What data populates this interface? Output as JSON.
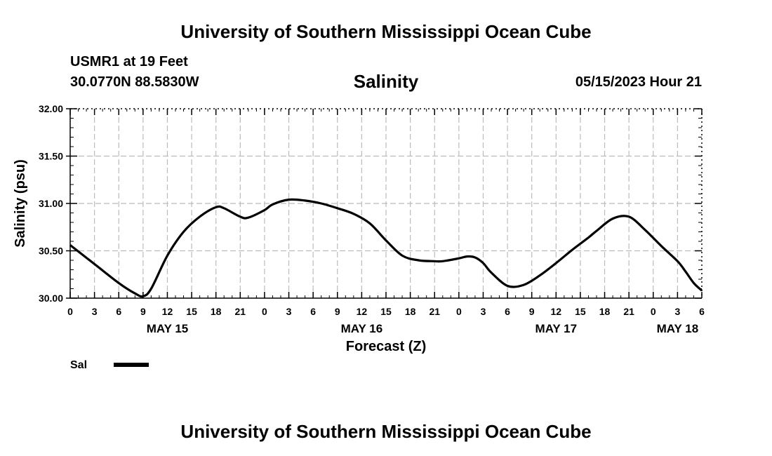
{
  "header": {
    "title": "University of Southern Mississippi Ocean Cube",
    "station": "USMR1 at 19 Feet",
    "coords": "30.0770N  88.5830W",
    "chart_title": "Salinity",
    "datetime": "05/15/2023 Hour 21"
  },
  "footer": {
    "title": "University of Southern Mississippi Ocean Cube"
  },
  "colors": {
    "line": "#000000",
    "grid": "#bbbbbb",
    "axis": "#000000"
  },
  "chart_data": {
    "type": "line",
    "title": "Salinity",
    "xlabel": "Forecast (Z)",
    "ylabel": "Salinity (psu)",
    "xlim": [
      0,
      78
    ],
    "ylim": [
      30.0,
      32.0
    ],
    "y_ticks": [
      30.0,
      30.5,
      31.0,
      31.5,
      32.0
    ],
    "y_tick_labels": [
      "30.00",
      "30.50",
      "31.00",
      "31.50",
      "32.00"
    ],
    "x_ticks": [
      0,
      3,
      6,
      9,
      12,
      15,
      18,
      21,
      24,
      27,
      30,
      33,
      36,
      39,
      42,
      45,
      48,
      51,
      54,
      57,
      60,
      63,
      66,
      69,
      72,
      75,
      78
    ],
    "x_tick_labels": [
      "0",
      "3",
      "6",
      "9",
      "12",
      "15",
      "18",
      "21",
      "0",
      "3",
      "6",
      "9",
      "12",
      "15",
      "18",
      "21",
      "0",
      "3",
      "6",
      "9",
      "12",
      "15",
      "18",
      "21",
      "0",
      "3",
      "6"
    ],
    "day_labels": [
      {
        "x": 12,
        "text": "MAY 15"
      },
      {
        "x": 36,
        "text": "MAY 16"
      },
      {
        "x": 60,
        "text": "MAY 17"
      },
      {
        "x": 75,
        "text": "MAY 18"
      }
    ],
    "grid": true,
    "legend": {
      "position": "bottom-left",
      "entries": [
        "Sal"
      ]
    },
    "series": [
      {
        "name": "Sal",
        "x": [
          0,
          3,
          6,
          8,
          9,
          10,
          12,
          14,
          16,
          18,
          19,
          21,
          22,
          24,
          25,
          27,
          29,
          31,
          33,
          35,
          37,
          39,
          41,
          43,
          45,
          46,
          48,
          49,
          50,
          51,
          52,
          54,
          56,
          58,
          60,
          62,
          64,
          65,
          67,
          69,
          71,
          73,
          75,
          76,
          77,
          78
        ],
        "values": [
          30.56,
          30.36,
          30.16,
          30.05,
          30.02,
          30.1,
          30.45,
          30.7,
          30.86,
          30.96,
          30.95,
          30.86,
          30.85,
          30.93,
          30.99,
          31.04,
          31.03,
          31.0,
          30.95,
          30.89,
          30.79,
          30.61,
          30.45,
          30.4,
          30.39,
          30.39,
          30.42,
          30.44,
          30.43,
          30.37,
          30.27,
          30.13,
          30.14,
          30.24,
          30.37,
          30.51,
          30.64,
          30.71,
          30.84,
          30.86,
          30.72,
          30.55,
          30.39,
          30.28,
          30.16,
          30.08
        ]
      }
    ]
  }
}
